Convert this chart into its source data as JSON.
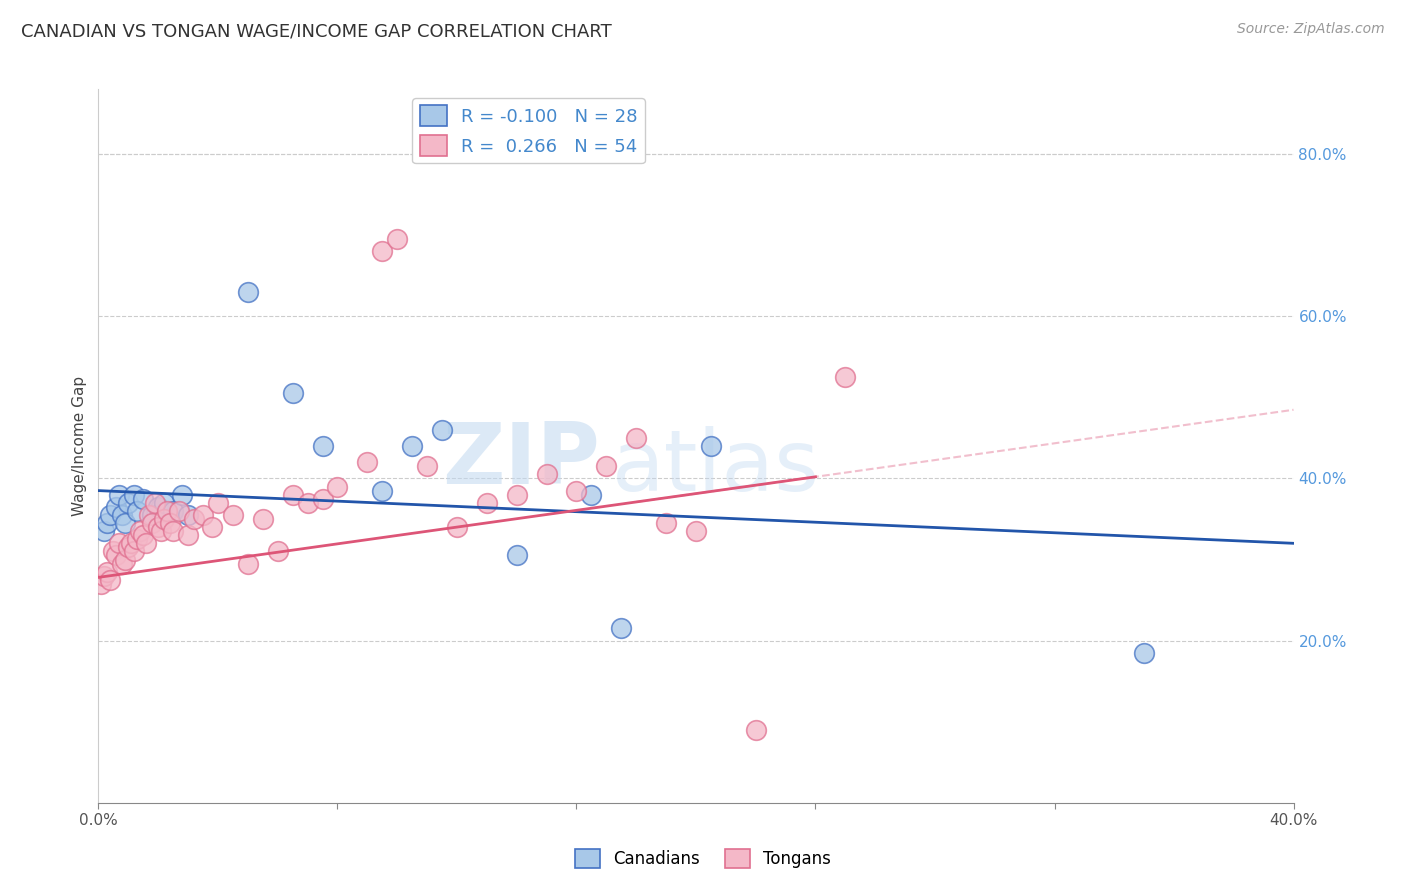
{
  "title": "CANADIAN VS TONGAN WAGE/INCOME GAP CORRELATION CHART",
  "source": "Source: ZipAtlas.com",
  "ylabel": "Wage/Income Gap",
  "xlim": [
    0.0,
    0.4
  ],
  "ylim": [
    0.0,
    0.88
  ],
  "xtick_positions": [
    0.0,
    0.08,
    0.16,
    0.24,
    0.32,
    0.4
  ],
  "xticklabels": [
    "0.0%",
    "",
    "",
    "",
    "",
    "40.0%"
  ],
  "yticks_right": [
    0.2,
    0.4,
    0.6,
    0.8
  ],
  "ytick_right_labels": [
    "20.0%",
    "40.0%",
    "60.0%",
    "80.0%"
  ],
  "canadian_R": -0.1,
  "canadian_N": 28,
  "tongan_R": 0.266,
  "tongan_N": 54,
  "canadian_color": "#a8c8e8",
  "tongan_color": "#f4b8c8",
  "canadian_edge_color": "#4472c4",
  "tongan_edge_color": "#e07090",
  "canadian_line_color": "#2255aa",
  "tongan_line_color": "#dd5577",
  "tongan_dash_color": "#f0b8c8",
  "watermark_zip": "ZIP",
  "watermark_atlas": "atlas",
  "canadian_x": [
    0.002,
    0.003,
    0.004,
    0.006,
    0.007,
    0.008,
    0.009,
    0.01,
    0.012,
    0.013,
    0.015,
    0.018,
    0.02,
    0.022,
    0.025,
    0.028,
    0.03,
    0.05,
    0.065,
    0.075,
    0.095,
    0.105,
    0.115,
    0.14,
    0.165,
    0.175,
    0.205,
    0.35
  ],
  "canadian_y": [
    0.335,
    0.345,
    0.355,
    0.365,
    0.38,
    0.355,
    0.345,
    0.37,
    0.38,
    0.36,
    0.375,
    0.355,
    0.365,
    0.37,
    0.36,
    0.38,
    0.355,
    0.63,
    0.505,
    0.44,
    0.385,
    0.44,
    0.46,
    0.305,
    0.38,
    0.215,
    0.44,
    0.185
  ],
  "tongan_x": [
    0.001,
    0.002,
    0.003,
    0.004,
    0.005,
    0.006,
    0.007,
    0.008,
    0.009,
    0.01,
    0.011,
    0.012,
    0.013,
    0.014,
    0.015,
    0.016,
    0.017,
    0.018,
    0.019,
    0.02,
    0.021,
    0.022,
    0.023,
    0.024,
    0.025,
    0.027,
    0.03,
    0.032,
    0.035,
    0.038,
    0.04,
    0.045,
    0.05,
    0.055,
    0.06,
    0.065,
    0.07,
    0.075,
    0.08,
    0.09,
    0.095,
    0.1,
    0.11,
    0.12,
    0.13,
    0.14,
    0.15,
    0.16,
    0.17,
    0.18,
    0.19,
    0.2,
    0.22,
    0.25
  ],
  "tongan_y": [
    0.27,
    0.28,
    0.285,
    0.275,
    0.31,
    0.305,
    0.32,
    0.295,
    0.3,
    0.315,
    0.32,
    0.31,
    0.325,
    0.335,
    0.33,
    0.32,
    0.355,
    0.345,
    0.37,
    0.34,
    0.335,
    0.35,
    0.36,
    0.345,
    0.335,
    0.36,
    0.33,
    0.35,
    0.355,
    0.34,
    0.37,
    0.355,
    0.295,
    0.35,
    0.31,
    0.38,
    0.37,
    0.375,
    0.39,
    0.42,
    0.68,
    0.695,
    0.415,
    0.34,
    0.37,
    0.38,
    0.405,
    0.385,
    0.415,
    0.45,
    0.345,
    0.335,
    0.09,
    0.525
  ]
}
